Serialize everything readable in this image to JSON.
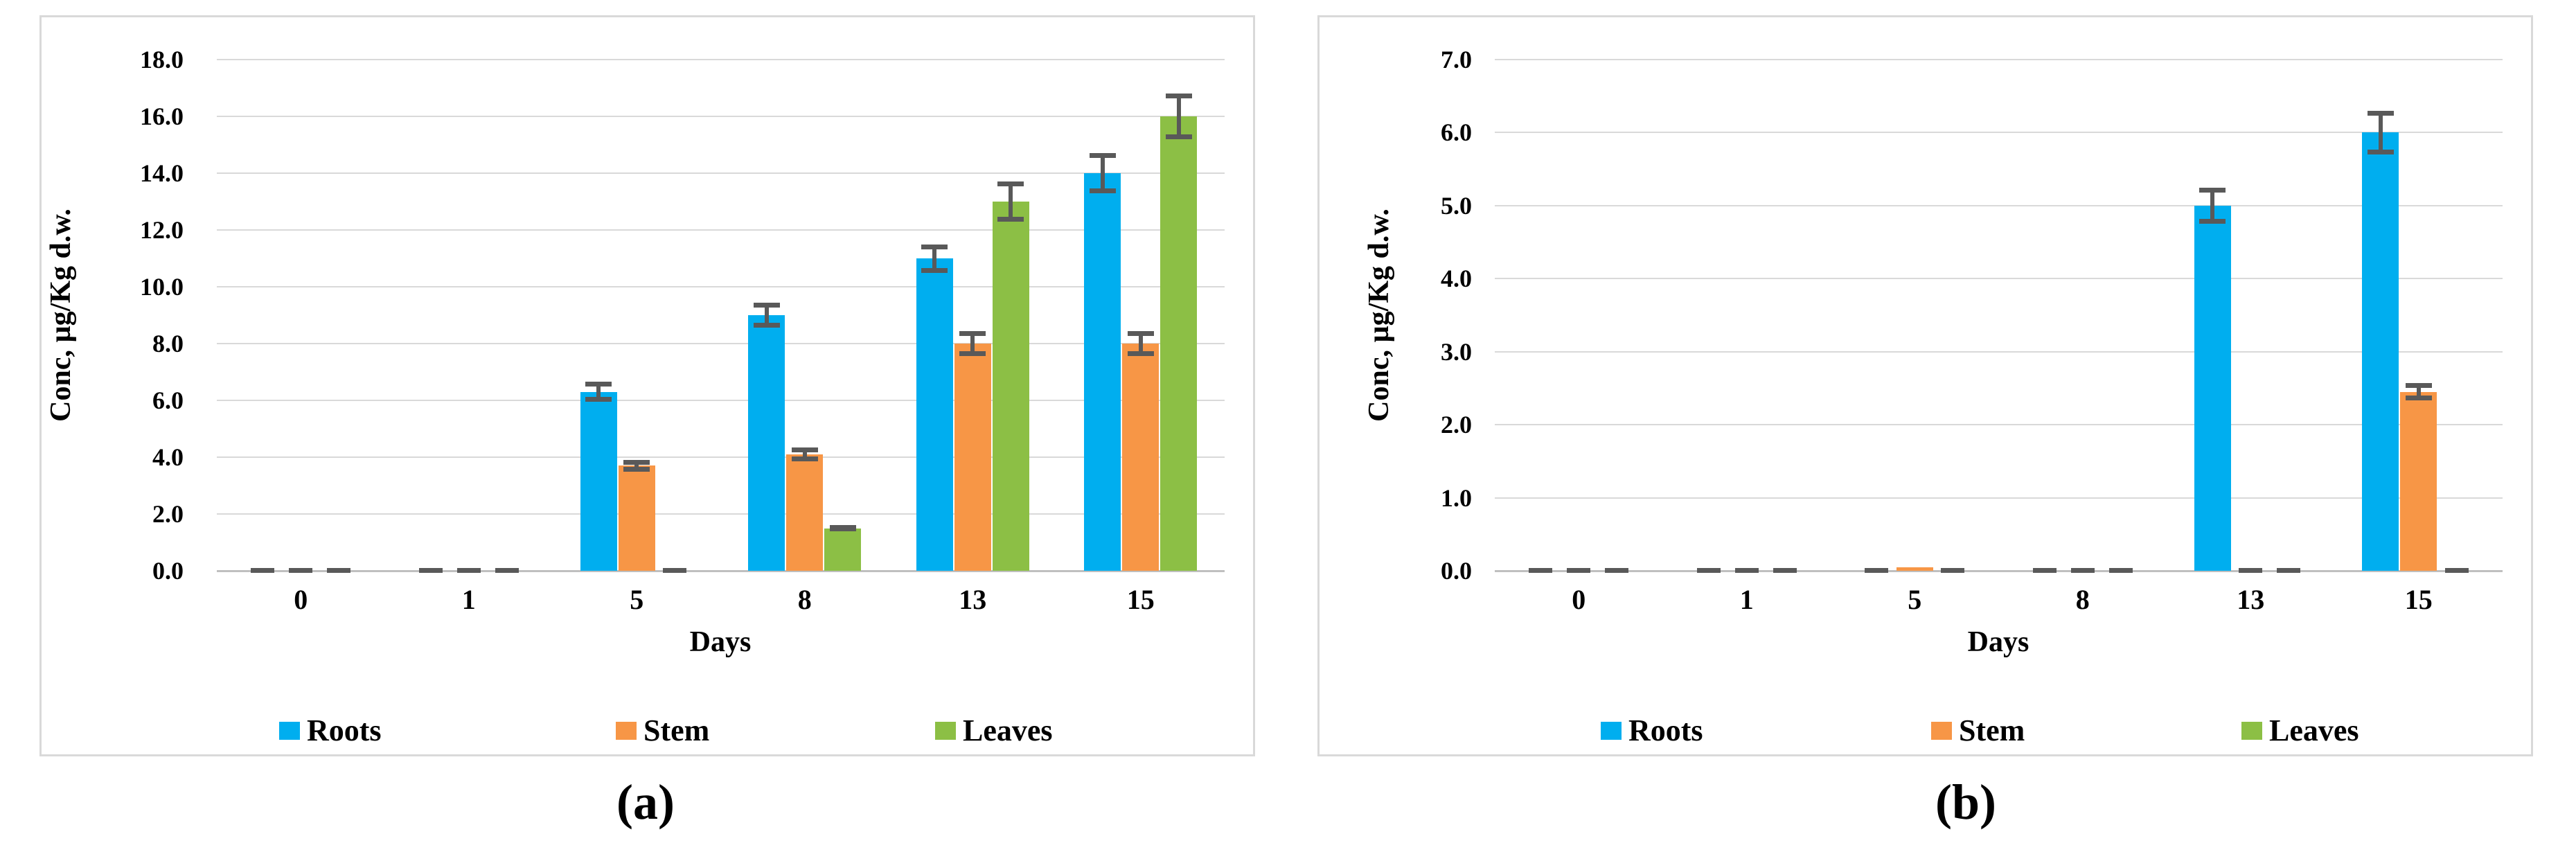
{
  "figure": {
    "caption_a": "(a)",
    "caption_b": "(b)"
  },
  "chart_data": [
    {
      "type": "bar",
      "panel": "a",
      "caption": "(a)",
      "xlabel": "Days",
      "ylabel": "Conc, µg/Kg d.w.",
      "ylim": [
        0,
        18
      ],
      "ystep": 2,
      "grid": true,
      "legend_position": "bottom",
      "y_ticks": [
        "0.0",
        "2.0",
        "4.0",
        "6.0",
        "8.0",
        "10.0",
        "12.0",
        "14.0",
        "16.0",
        "18.0"
      ],
      "categories": [
        "0",
        "1",
        "5",
        "8",
        "13",
        "15"
      ],
      "series": [
        {
          "name": "Roots",
          "color": "#00AEEF",
          "values": [
            0,
            0,
            6.3,
            9.0,
            11.0,
            14.0
          ],
          "errors": [
            0,
            0,
            0.35,
            0.45,
            0.5,
            0.7
          ]
        },
        {
          "name": "Stem",
          "color": "#F79646",
          "values": [
            0,
            0,
            3.7,
            4.1,
            8.0,
            8.0
          ],
          "errors": [
            0,
            0,
            0.2,
            0.25,
            0.45,
            0.45
          ]
        },
        {
          "name": "Leaves",
          "color": "#8CBF45",
          "values": [
            0,
            0,
            0,
            1.5,
            13.0,
            16.0
          ],
          "errors": [
            0,
            0,
            0,
            0.12,
            0.7,
            0.8
          ]
        }
      ]
    },
    {
      "type": "bar",
      "panel": "b",
      "caption": "(b)",
      "xlabel": "Days",
      "ylabel": "Conc, µg/Kg d.w.",
      "ylim": [
        0,
        7
      ],
      "ystep": 1,
      "grid": true,
      "legend_position": "bottom",
      "y_ticks": [
        "0.0",
        "1.0",
        "2.0",
        "3.0",
        "4.0",
        "5.0",
        "6.0",
        "7.0"
      ],
      "categories": [
        "0",
        "1",
        "5",
        "8",
        "13",
        "15"
      ],
      "series": [
        {
          "name": "Roots",
          "color": "#00AEEF",
          "values": [
            0,
            0,
            0,
            0,
            5.0,
            6.0
          ],
          "errors": [
            0,
            0,
            0,
            0,
            0.25,
            0.3
          ]
        },
        {
          "name": "Stem",
          "color": "#F79646",
          "values": [
            0,
            0,
            0.05,
            0,
            0,
            2.45
          ],
          "errors": [
            0,
            0,
            0,
            0,
            0,
            0.12
          ]
        },
        {
          "name": "Leaves",
          "color": "#8CBF45",
          "values": [
            0,
            0,
            0,
            0,
            0,
            0
          ],
          "errors": [
            0,
            0,
            0,
            0,
            0,
            0
          ]
        }
      ]
    }
  ]
}
